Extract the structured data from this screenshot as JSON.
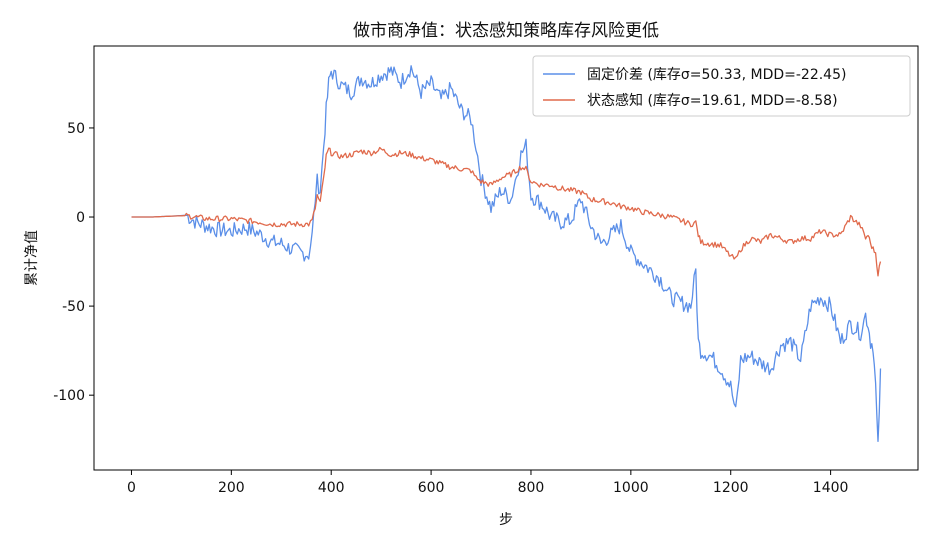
{
  "chart_data": {
    "type": "line",
    "title": "做市商净值：状态感知策略库存风险更低",
    "xlabel": "步",
    "ylabel": "累计净值",
    "xlim": [
      -75,
      1575
    ],
    "ylim": [
      -142,
      96
    ],
    "x_ticks": [
      0,
      200,
      400,
      600,
      800,
      1000,
      1200,
      1400
    ],
    "y_ticks": [
      -100,
      -50,
      0,
      50
    ],
    "y_tick_labels": [
      "-100",
      "-50",
      "0",
      "50"
    ],
    "grid": false,
    "legend_position": "top-right",
    "series": [
      {
        "name": "固定价差 (库存σ=50.33, MDD=-22.45)",
        "color": "#5b8fe8",
        "x": [
          0,
          40,
          80,
          110,
          130,
          150,
          170,
          200,
          230,
          260,
          280,
          300,
          320,
          340,
          355,
          362,
          368,
          372,
          378,
          385,
          390,
          395,
          400,
          420,
          440,
          460,
          480,
          500,
          520,
          540,
          560,
          580,
          600,
          620,
          640,
          660,
          680,
          690,
          700,
          720,
          740,
          760,
          780,
          790,
          800,
          820,
          840,
          860,
          880,
          900,
          920,
          940,
          960,
          980,
          1000,
          1020,
          1040,
          1060,
          1080,
          1100,
          1120,
          1130,
          1135,
          1140,
          1160,
          1180,
          1200,
          1210,
          1220,
          1240,
          1260,
          1280,
          1300,
          1320,
          1340,
          1360,
          1380,
          1400,
          1420,
          1440,
          1460,
          1470,
          1475,
          1480,
          1485,
          1490,
          1495,
          1500
        ],
        "y": [
          0,
          0,
          0.5,
          1,
          -3,
          -5,
          -7,
          -8,
          -6,
          -10,
          -14,
          -15,
          -18,
          -20,
          -21,
          -10,
          10,
          20,
          15,
          40,
          60,
          75,
          82,
          74,
          70,
          78,
          75,
          80,
          82,
          76,
          84,
          70,
          75,
          66,
          72,
          60,
          55,
          40,
          22,
          5,
          15,
          10,
          35,
          40,
          12,
          8,
          0,
          -3,
          -2,
          10,
          -5,
          -15,
          -10,
          -5,
          -20,
          -25,
          -30,
          -35,
          -45,
          -48,
          -50,
          -30,
          -70,
          -75,
          -78,
          -85,
          -95,
          -110,
          -80,
          -78,
          -82,
          -85,
          -72,
          -70,
          -80,
          -50,
          -45,
          -50,
          -70,
          -60,
          -65,
          -55,
          -60,
          -70,
          -72,
          -95,
          -130,
          -85
        ]
      },
      {
        "name": "状态感知 (库存σ=19.61, MDD=-8.58)",
        "color": "#e06a4c",
        "x": [
          0,
          40,
          80,
          110,
          130,
          150,
          170,
          200,
          230,
          260,
          280,
          300,
          320,
          340,
          355,
          362,
          368,
          372,
          378,
          385,
          390,
          395,
          400,
          420,
          440,
          460,
          480,
          500,
          520,
          540,
          560,
          580,
          600,
          620,
          640,
          660,
          680,
          690,
          700,
          720,
          740,
          760,
          780,
          790,
          800,
          820,
          840,
          860,
          880,
          900,
          920,
          940,
          960,
          980,
          1000,
          1020,
          1040,
          1060,
          1080,
          1100,
          1120,
          1130,
          1135,
          1140,
          1160,
          1180,
          1200,
          1210,
          1220,
          1240,
          1260,
          1280,
          1300,
          1320,
          1340,
          1360,
          1380,
          1400,
          1420,
          1440,
          1460,
          1470,
          1475,
          1480,
          1485,
          1490,
          1495,
          1500
        ],
        "y": [
          0,
          0,
          0.5,
          0.8,
          0,
          -1,
          -1,
          -1,
          -2,
          -3,
          -4,
          -4,
          -4,
          -4,
          -4,
          -2,
          5,
          12,
          8,
          22,
          34,
          38,
          36,
          34,
          35,
          37,
          36,
          38,
          35,
          36,
          35,
          33,
          32,
          30,
          28,
          27,
          26,
          22,
          20,
          18,
          22,
          24,
          28,
          27,
          20,
          18,
          18,
          16,
          15,
          14,
          10,
          9,
          8,
          6,
          5,
          3,
          2,
          1,
          0,
          -2,
          -4,
          -3,
          -10,
          -14,
          -15,
          -16,
          -22,
          -24,
          -18,
          -12,
          -14,
          -10,
          -12,
          -14,
          -12,
          -12,
          -8,
          -10,
          -10,
          0,
          -5,
          -12,
          -10,
          -15,
          -18,
          -20,
          -32,
          -25
        ]
      }
    ]
  }
}
